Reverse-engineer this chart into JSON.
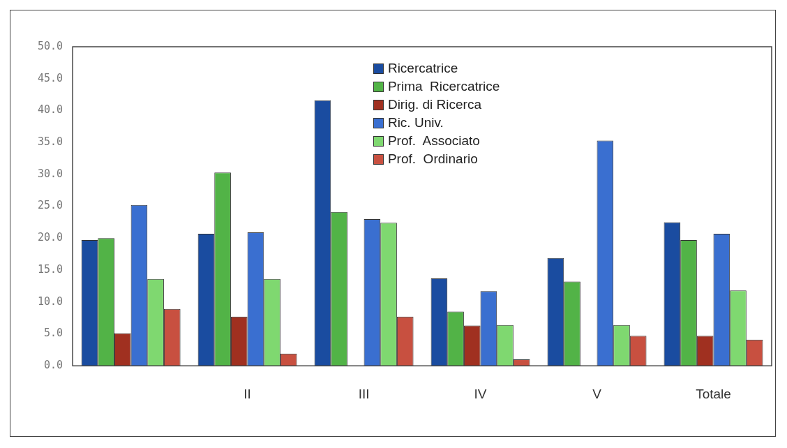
{
  "chart_data": {
    "type": "bar",
    "categories": [
      null,
      "II",
      "III",
      "IV",
      "V",
      "Totale"
    ],
    "series": [
      {
        "name": "Ricercatrice",
        "color": "#1a4ca0",
        "values": [
          19.7,
          20.7,
          41.6,
          13.7,
          16.9,
          22.5
        ]
      },
      {
        "name": "Prima  Ricercatrice",
        "color": "#52b347",
        "values": [
          20.0,
          30.3,
          24.1,
          8.5,
          13.2,
          19.7
        ]
      },
      {
        "name": "Dirig. di Ricerca",
        "color": "#a03020",
        "values": [
          5.1,
          7.7,
          null,
          6.3,
          null,
          4.7
        ]
      },
      {
        "name": "Ric. Univ.",
        "color": "#3a6fd0",
        "values": [
          25.2,
          20.9,
          23.0,
          11.7,
          35.3,
          20.7
        ]
      },
      {
        "name": "Prof.  Associato",
        "color": "#7fd870",
        "values": [
          13.6,
          13.6,
          22.4,
          6.4,
          6.4,
          11.8
        ]
      },
      {
        "name": "Prof.  Ordinario",
        "color": "#c85040",
        "values": [
          8.9,
          1.9,
          7.7,
          1.0,
          4.7,
          4.1
        ]
      }
    ],
    "ylim": [
      0,
      50
    ],
    "yticks": [
      {
        "value": 0,
        "label": "0.0"
      },
      {
        "value": 5,
        "label": "5.0"
      },
      {
        "value": 10,
        "label": "10.0"
      },
      {
        "value": 15,
        "label": "15.0"
      },
      {
        "value": 20,
        "label": "20.0"
      },
      {
        "value": 25,
        "label": "25.0"
      },
      {
        "value": 30,
        "label": "30.0"
      },
      {
        "value": 35,
        "label": "35.0"
      },
      {
        "value": 40,
        "label": "40.0"
      },
      {
        "value": 45,
        "label": "45.0"
      },
      {
        "value": 50,
        "label": "50.0"
      }
    ],
    "grid": false,
    "legend": "top"
  }
}
